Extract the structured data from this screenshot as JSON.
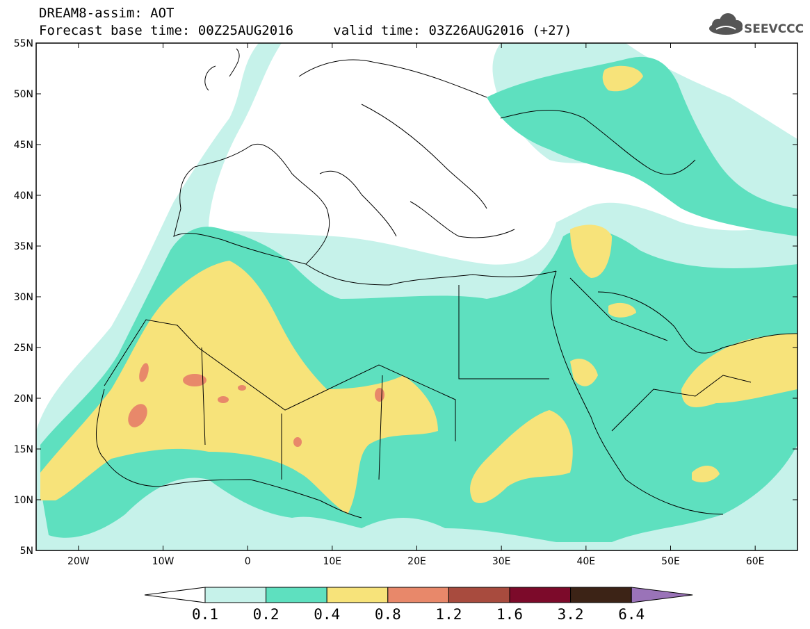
{
  "header": {
    "title_line1": "DREAM8-assim: AOT",
    "forecast_label": "Forecast base time: 00Z25AUG2016",
    "valid_label": "valid time: 03Z26AUG2016 (+27)"
  },
  "logo": {
    "text": "SEEVCCC",
    "icon": "cloud-icon"
  },
  "map": {
    "lon_range": [
      -25,
      65
    ],
    "lat_range": [
      5,
      55
    ],
    "x_ticks": [
      {
        "value": -20,
        "label": "20W"
      },
      {
        "value": -10,
        "label": "10W"
      },
      {
        "value": 0,
        "label": "0"
      },
      {
        "value": 10,
        "label": "10E"
      },
      {
        "value": 20,
        "label": "20E"
      },
      {
        "value": 30,
        "label": "30E"
      },
      {
        "value": 40,
        "label": "40E"
      },
      {
        "value": 50,
        "label": "50E"
      },
      {
        "value": 60,
        "label": "60E"
      }
    ],
    "y_ticks": [
      {
        "value": 55,
        "label": "55N"
      },
      {
        "value": 50,
        "label": "50N"
      },
      {
        "value": 45,
        "label": "45N"
      },
      {
        "value": 40,
        "label": "40N"
      },
      {
        "value": 35,
        "label": "35N"
      },
      {
        "value": 30,
        "label": "30N"
      },
      {
        "value": 25,
        "label": "25N"
      },
      {
        "value": 20,
        "label": "20N"
      },
      {
        "value": 15,
        "label": "15N"
      },
      {
        "value": 10,
        "label": "10N"
      },
      {
        "value": 5,
        "label": "5N"
      }
    ]
  },
  "colorbar": {
    "labels": [
      "0.1",
      "0.2",
      "0.4",
      "0.8",
      "1.2",
      "1.6",
      "3.2",
      "6.4"
    ],
    "colors": [
      "#c6f2ea",
      "#5ee0bf",
      "#f7e37a",
      "#e8886a",
      "#a84b3e",
      "#7c0a2a",
      "#3c2316"
    ],
    "under_color": "#ffffff",
    "over_color": "#9a73b8"
  },
  "colors": {
    "level1": "#c6f2ea",
    "level2": "#5ee0bf",
    "level3": "#f7e37a",
    "level4": "#e8886a",
    "coast": "#000000"
  }
}
